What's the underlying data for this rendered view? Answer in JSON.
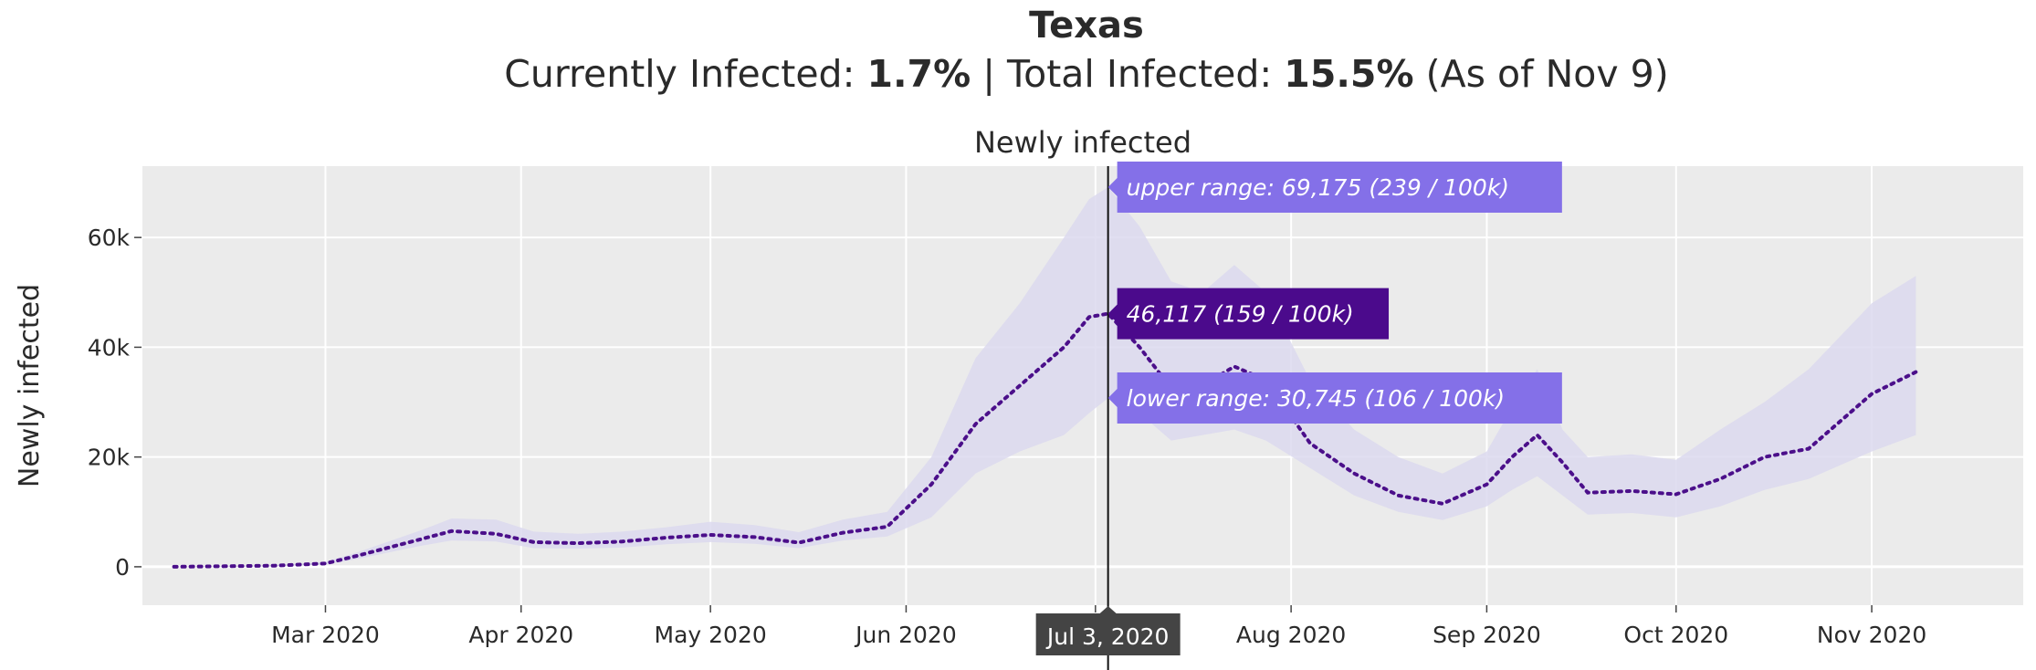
{
  "header": {
    "state": "Texas",
    "current_label": "Currently Infected: ",
    "current_value": "1.7%",
    "separator": " | ",
    "total_label": "Total Infected: ",
    "total_value": "15.5%",
    "as_of": " (As of Nov 9)"
  },
  "colors": {
    "plot_bg": "#ebebeb",
    "grid": "#ffffff",
    "band": "#dcd9ee",
    "line": "#4b0f8a",
    "range_tip": "#8470e8",
    "value_tip": "#4b0a8c",
    "date_tip": "#444444"
  },
  "chart_data": {
    "type": "line",
    "title": "Newly infected",
    "ylabel": "Newly infected",
    "xlabel": "",
    "ylim": [
      -7000,
      73000
    ],
    "xlim": [
      "2020-02-01",
      "2020-11-25"
    ],
    "y_ticks": [
      0,
      20000,
      40000,
      60000
    ],
    "y_tick_labels": [
      "0",
      "20k",
      "40k",
      "60k"
    ],
    "x_ticks": [
      "2020-03-01",
      "2020-04-01",
      "2020-05-01",
      "2020-06-01",
      "2020-07-01",
      "2020-08-01",
      "2020-09-01",
      "2020-10-01",
      "2020-11-01"
    ],
    "x_tick_labels": [
      "Mar 2020",
      "Apr 2020",
      "May 2020",
      "Jun 2020",
      "Jul 2020",
      "Aug 2020",
      "Sep 2020",
      "Oct 2020",
      "Nov 2020"
    ],
    "grid": true,
    "series": [
      {
        "style": "dotted",
        "x": [
          "2020-02-06",
          "2020-02-14",
          "2020-02-22",
          "2020-03-01",
          "2020-03-06",
          "2020-03-11",
          "2020-03-16",
          "2020-03-21",
          "2020-03-28",
          "2020-04-03",
          "2020-04-10",
          "2020-04-17",
          "2020-04-24",
          "2020-05-01",
          "2020-05-08",
          "2020-05-15",
          "2020-05-22",
          "2020-05-29",
          "2020-06-05",
          "2020-06-12",
          "2020-06-19",
          "2020-06-26",
          "2020-06-30",
          "2020-07-03",
          "2020-07-08",
          "2020-07-13",
          "2020-07-18",
          "2020-07-23",
          "2020-07-28",
          "2020-08-04",
          "2020-08-11",
          "2020-08-18",
          "2020-08-25",
          "2020-09-01",
          "2020-09-05",
          "2020-09-09",
          "2020-09-13",
          "2020-09-17",
          "2020-09-24",
          "2020-10-01",
          "2020-10-08",
          "2020-10-15",
          "2020-10-22",
          "2020-11-01",
          "2020-11-08"
        ],
        "y": [
          0,
          100,
          200,
          600,
          2000,
          3500,
          5000,
          6500,
          6000,
          4500,
          4300,
          4600,
          5300,
          5800,
          5400,
          4400,
          6200,
          7300,
          15000,
          26000,
          33000,
          40000,
          45500,
          46117,
          40000,
          32500,
          33000,
          36500,
          34000,
          22500,
          17000,
          13000,
          11500,
          15000,
          20000,
          24000,
          19000,
          13500,
          13800,
          13200,
          16000,
          20000,
          21500,
          31500,
          35500
        ]
      }
    ],
    "band": {
      "name": "range",
      "x": [
        "2020-02-06",
        "2020-02-14",
        "2020-02-22",
        "2020-03-01",
        "2020-03-06",
        "2020-03-11",
        "2020-03-16",
        "2020-03-21",
        "2020-03-28",
        "2020-04-03",
        "2020-04-10",
        "2020-04-17",
        "2020-04-24",
        "2020-05-01",
        "2020-05-08",
        "2020-05-15",
        "2020-05-22",
        "2020-05-29",
        "2020-06-05",
        "2020-06-12",
        "2020-06-19",
        "2020-06-26",
        "2020-06-30",
        "2020-07-03",
        "2020-07-08",
        "2020-07-13",
        "2020-07-18",
        "2020-07-23",
        "2020-07-28",
        "2020-08-04",
        "2020-08-11",
        "2020-08-18",
        "2020-08-25",
        "2020-09-01",
        "2020-09-05",
        "2020-09-09",
        "2020-09-13",
        "2020-09-17",
        "2020-09-24",
        "2020-10-01",
        "2020-10-08",
        "2020-10-15",
        "2020-10-22",
        "2020-11-01",
        "2020-11-08"
      ],
      "lower": [
        0,
        0,
        100,
        400,
        1400,
        2600,
        3800,
        4800,
        4600,
        3400,
        3300,
        3500,
        4100,
        4500,
        4200,
        3400,
        4800,
        5500,
        9000,
        17000,
        21000,
        24000,
        28000,
        30745,
        28000,
        23000,
        24000,
        25000,
        23000,
        18000,
        13000,
        10000,
        8500,
        11000,
        14000,
        16500,
        13000,
        9500,
        9800,
        9000,
        11000,
        14000,
        16000,
        21000,
        24000
      ],
      "upper": [
        0,
        100,
        300,
        900,
        2600,
        4600,
        6600,
        8800,
        8600,
        6400,
        6000,
        6400,
        7200,
        8200,
        7600,
        6300,
        8600,
        10000,
        20000,
        38000,
        48000,
        60000,
        67000,
        69175,
        62000,
        52000,
        50000,
        55000,
        50000,
        34000,
        25000,
        20000,
        17000,
        21000,
        29000,
        36000,
        25000,
        20000,
        20500,
        19500,
        25000,
        30000,
        36000,
        48000,
        53000
      ]
    },
    "hover": {
      "date_label": "Jul 3, 2020",
      "date": "2020-07-03",
      "value": 46117,
      "lower": 30745,
      "upper": 69175,
      "value_label": "46,117 (159 / 100k)",
      "lower_label": "lower range: 30,745 (106 / 100k)",
      "upper_label": "upper range: 69,175 (239 / 100k)"
    }
  }
}
